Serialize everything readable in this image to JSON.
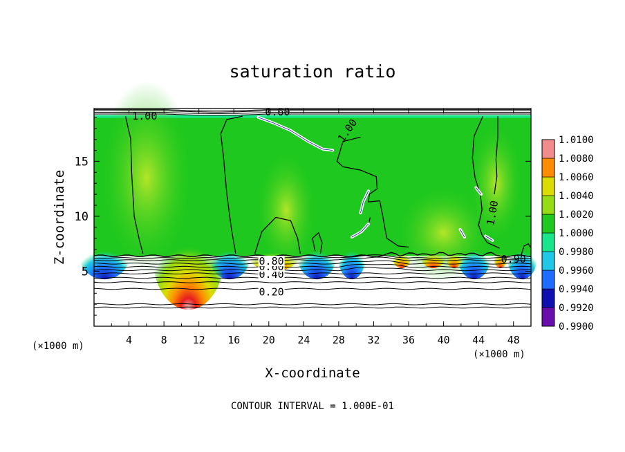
{
  "chart_data": {
    "type": "heatmap",
    "title": "saturation ratio",
    "xlabel": "X-coordinate",
    "ylabel": "Z-coordinate",
    "x_unit_left": "(×1000 m)",
    "x_unit_right": "(×1000 m)",
    "xlim": [
      0,
      50
    ],
    "ylim": [
      0,
      19.8
    ],
    "x_ticks": [
      4,
      8,
      12,
      16,
      20,
      24,
      28,
      32,
      36,
      40,
      44,
      48
    ],
    "x_tick_labels": [
      "4",
      "8",
      "12",
      "16",
      "20",
      "24",
      "28",
      "32",
      "36",
      "40",
      "44",
      "48"
    ],
    "y_ticks": [
      5,
      10,
      15
    ],
    "y_tick_labels": [
      "5",
      "10",
      "15"
    ],
    "colorbar": {
      "levels": [
        0.99,
        0.992,
        0.994,
        0.996,
        0.998,
        1.0,
        1.002,
        1.004,
        1.006,
        1.008,
        1.01
      ],
      "labels": [
        "0.9900",
        "0.9920",
        "0.9940",
        "0.9960",
        "0.9980",
        "1.0000",
        "1.0020",
        "1.0040",
        "1.0060",
        "1.0080",
        "1.0100"
      ],
      "colors": [
        "#6a0dad",
        "#1010b0",
        "#1e6cff",
        "#1ec8e6",
        "#19e68c",
        "#1ec81e",
        "#96dc14",
        "#dcdc00",
        "#ff8c00",
        "#e61e1e",
        "#f08c8c"
      ]
    },
    "contour_labels": [
      {
        "text": "0.20",
        "x": 20.3,
        "z": 3.1
      },
      {
        "text": "0.40",
        "x": 20.3,
        "z": 4.7
      },
      {
        "text": "0.60",
        "x": 20.3,
        "z": 5.4
      },
      {
        "text": "0.80",
        "x": 20.3,
        "z": 5.9
      },
      {
        "text": "1.00",
        "x": 5.8,
        "z": 19.1
      },
      {
        "text": "0.60",
        "x": 21.0,
        "z": 19.5
      },
      {
        "text": "1.00",
        "x": 29.0,
        "z": 17.8
      },
      {
        "text": "1.00",
        "x": 45.6,
        "z": 10.3
      },
      {
        "text": "0.90",
        "x": 48.0,
        "z": 6.1
      }
    ],
    "grid": false
  },
  "footer": {
    "contour_interval": "CONTOUR INTERVAL = 1.000E-01"
  }
}
